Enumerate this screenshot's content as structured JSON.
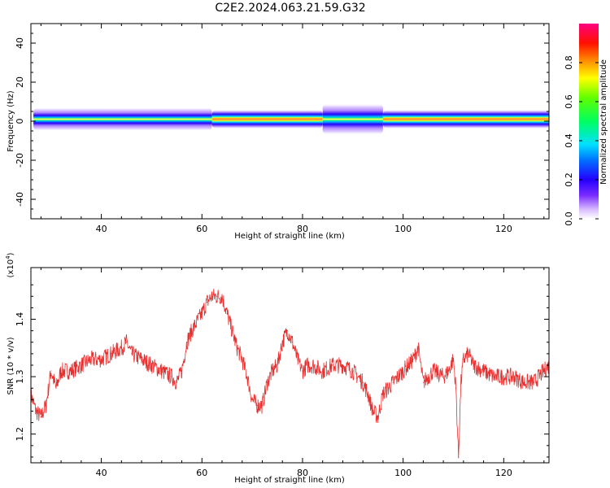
{
  "title": "C2E2.2024.063.21.59.G32",
  "chart_data": [
    {
      "type": "heatmap",
      "xlabel": "Height of straight line (km)",
      "ylabel": "Frequency (Hz)",
      "xlim": [
        26,
        129
      ],
      "ylim": [
        -50,
        50
      ],
      "xticks": [
        40,
        60,
        80,
        100,
        120
      ],
      "yticks": [
        40,
        20,
        0,
        -20,
        -40
      ],
      "colorbar": {
        "label": "Normalized spectral amplitude",
        "range": [
          0,
          1
        ],
        "ticks": [
          "0.0",
          "0.2",
          "0.4",
          "0.6",
          "0.8"
        ]
      },
      "band": {
        "center_frequency": 1,
        "segments": [
          {
            "x": [
              26.5,
              62
            ],
            "half_width_hz": 6,
            "peak_amplitude": 0.45
          },
          {
            "x": [
              62,
              84
            ],
            "half_width_hz": 5,
            "peak_amplitude": 0.95
          },
          {
            "x": [
              84,
              96
            ],
            "half_width_hz": 8,
            "peak_amplitude": 0.7
          },
          {
            "x": [
              96,
              129
            ],
            "half_width_hz": 5,
            "peak_amplitude": 0.9
          }
        ]
      }
    },
    {
      "type": "line",
      "xlabel": "Height of straight line (km)",
      "ylabel": "SNR (10 * v/v)",
      "y_multiplier_label": "(x10",
      "y_multiplier_exponent": "4",
      "y_multiplier_close": ")",
      "xlim": [
        26,
        129
      ],
      "ylim": [
        1.15,
        1.49
      ],
      "xticks": [
        40,
        60,
        80,
        100,
        120
      ],
      "yticks": [
        "1.2",
        "1.3",
        "1.4"
      ],
      "series": [
        {
          "color": "#e83030",
          "x": [
            26,
            27,
            28,
            29,
            30,
            31,
            32,
            34,
            36,
            38,
            40,
            42,
            44,
            45,
            46,
            48,
            50,
            52,
            54,
            55,
            56,
            57,
            58,
            60,
            61,
            62,
            63,
            64,
            65,
            66,
            67,
            68,
            69,
            70,
            71,
            72,
            73,
            74,
            75,
            76,
            77,
            78,
            79,
            80,
            81,
            82,
            84,
            86,
            88,
            90,
            92,
            93,
            94,
            95,
            96,
            98,
            100,
            102,
            103,
            104,
            106,
            108,
            109,
            110,
            110.5,
            111,
            111.5,
            112,
            113,
            114,
            116,
            118,
            120,
            122,
            124,
            126,
            128,
            129
          ],
          "y": [
            1.27,
            1.24,
            1.23,
            1.25,
            1.31,
            1.28,
            1.31,
            1.31,
            1.32,
            1.33,
            1.33,
            1.34,
            1.35,
            1.36,
            1.34,
            1.33,
            1.32,
            1.31,
            1.3,
            1.29,
            1.31,
            1.36,
            1.38,
            1.41,
            1.43,
            1.44,
            1.44,
            1.44,
            1.41,
            1.38,
            1.35,
            1.33,
            1.3,
            1.26,
            1.25,
            1.25,
            1.29,
            1.31,
            1.32,
            1.36,
            1.38,
            1.36,
            1.33,
            1.31,
            1.32,
            1.32,
            1.31,
            1.32,
            1.32,
            1.31,
            1.29,
            1.27,
            1.24,
            1.23,
            1.27,
            1.29,
            1.31,
            1.33,
            1.35,
            1.29,
            1.31,
            1.3,
            1.31,
            1.33,
            1.28,
            1.16,
            1.29,
            1.33,
            1.34,
            1.32,
            1.31,
            1.3,
            1.3,
            1.3,
            1.29,
            1.29,
            1.31,
            1.32
          ]
        }
      ]
    }
  ]
}
